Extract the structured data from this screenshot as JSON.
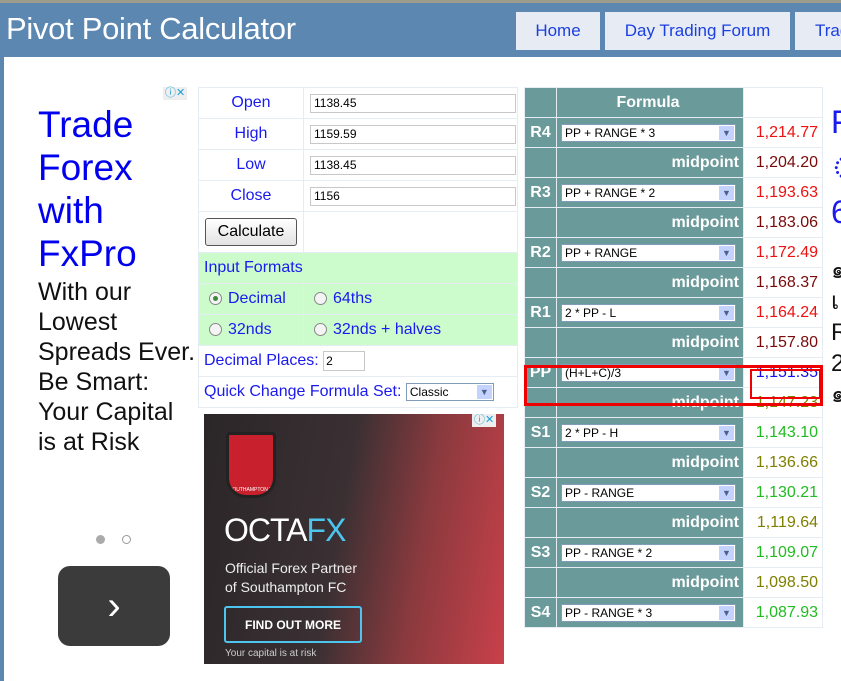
{
  "header": {
    "title": "Pivot Point Calculator",
    "nav": [
      "Home",
      "Day Trading Forum",
      "Trad"
    ]
  },
  "left_ad": {
    "headline": "Trade Forex with FxPro",
    "body": "With our Lowest Spreads Ever. Be Smart: Your Capital is at Risk",
    "next_icon": "chevron-right-icon"
  },
  "inputs": {
    "open_label": "Open",
    "open": "1138.45",
    "high_label": "High",
    "high": "1159.59",
    "low_label": "Low",
    "low": "1138.45",
    "close_label": "Close",
    "close": "1156",
    "calculate": "Calculate",
    "formats_label": "Input Formats",
    "formats": [
      "Decimal",
      "64ths",
      "32nds",
      "32nds + halves"
    ],
    "selected_format": "Decimal",
    "decimal_places_label": "Decimal Places:",
    "decimal_places": "2",
    "formula_set_label": "Quick Change Formula Set:",
    "formula_set": "Classic"
  },
  "octa_ad": {
    "brand_a": "OCTA",
    "brand_b": "FX",
    "tagline1": "Official Forex Partner",
    "tagline2": "of Southampton FC",
    "cta": "FIND OUT MORE",
    "disclaimer": "Your capital is at risk",
    "crest": "SOUTHAMPTON FC"
  },
  "results": {
    "formula_header": "Formula",
    "midpoint": "midpoint",
    "rows": [
      {
        "level": "R4",
        "formula": "PP + RANGE * 3",
        "value": "1,214.77",
        "mid": "1,204.20"
      },
      {
        "level": "R3",
        "formula": "PP + RANGE * 2",
        "value": "1,193.63",
        "mid": "1,183.06"
      },
      {
        "level": "R2",
        "formula": "PP + RANGE",
        "value": "1,172.49",
        "mid": "1,168.37"
      },
      {
        "level": "R1",
        "formula": "2 * PP - L",
        "value": "1,164.24",
        "mid": "1,157.80"
      },
      {
        "level": "PP",
        "formula": "(H+L+C)/3",
        "value": "1,151.35",
        "mid": "1,147.23"
      },
      {
        "level": "S1",
        "formula": "2 * PP - H",
        "value": "1,143.10",
        "mid": "1,136.66"
      },
      {
        "level": "S2",
        "formula": "PP - RANGE",
        "value": "1,130.21",
        "mid": "1,119.64"
      },
      {
        "level": "S3",
        "formula": "PP - RANGE * 2",
        "value": "1,109.07",
        "mid": "1,098.50"
      },
      {
        "level": "S4",
        "formula": "PP - RANGE * 3",
        "value": "1,087.93"
      }
    ]
  },
  "colors": {
    "resistance": "#ee1111",
    "res_mid": "#7a0a0a",
    "pivot": "#1111ee",
    "sup_mid": "#7f7f00",
    "support": "#22bb22",
    "highlight": "#ee0000"
  },
  "cut_text": {
    "blue": [
      "F",
      "ৃ",
      "6"
    ],
    "black": [
      "๑",
      "เ",
      "R",
      "2",
      "๑"
    ]
  }
}
